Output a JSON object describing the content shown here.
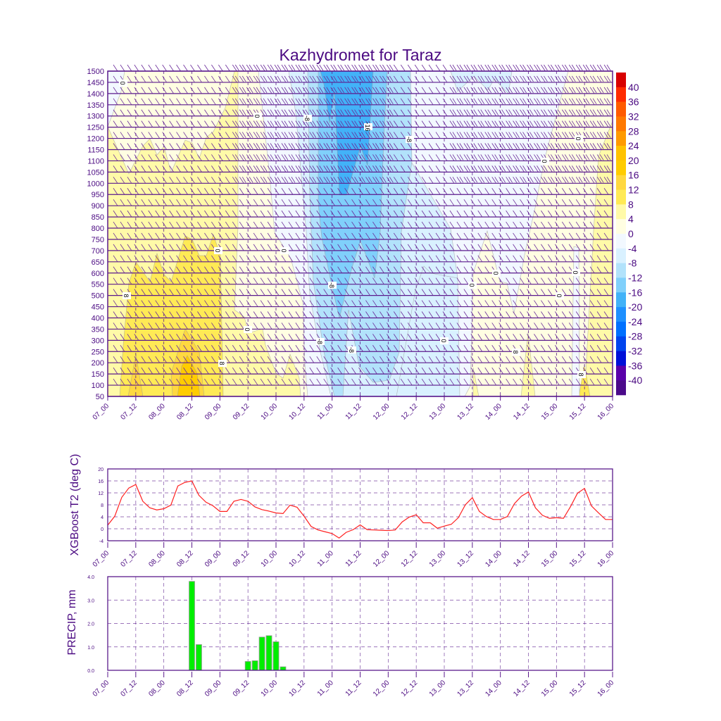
{
  "chart_data": [
    {
      "type": "heatmap",
      "title": "Kazhydromet for Taraz",
      "xlabel": "",
      "ylabel": "",
      "x_ticks": [
        "07_00",
        "07_12",
        "08_00",
        "08_12",
        "09_00",
        "09_12",
        "10_00",
        "10_12",
        "11_00",
        "11_12",
        "12_00",
        "12_12",
        "13_00",
        "13_12",
        "14_00",
        "14_12",
        "15_00",
        "15_12",
        "16_00"
      ],
      "y_ticks": [
        50,
        100,
        150,
        200,
        250,
        300,
        350,
        400,
        450,
        500,
        550,
        600,
        650,
        700,
        750,
        800,
        850,
        900,
        950,
        1000,
        1050,
        1100,
        1150,
        1200,
        1250,
        1300,
        1350,
        1400,
        1450,
        1500
      ],
      "ylim": [
        50,
        1500
      ],
      "colorbar": {
        "labels": [
          40,
          36,
          32,
          28,
          24,
          20,
          16,
          12,
          8,
          4,
          0,
          -4,
          -8,
          -12,
          -16,
          -20,
          -24,
          -28,
          -32,
          -36,
          -40
        ],
        "colors": [
          "#d80000",
          "#ff2a00",
          "#ff5a00",
          "#ff7800",
          "#ff9a00",
          "#ffc200",
          "#ffcc00",
          "#ffd840",
          "#ffea55",
          "#fffaa8",
          "#fffee2",
          "#f2f8ff",
          "#d9f1ff",
          "#b2e2fb",
          "#80d0fb",
          "#42b2f8",
          "#1e90ff",
          "#0070ff",
          "#0044ee",
          "#0010d8",
          "#5a00aa",
          "#4b0a8a"
        ]
      },
      "contour_labels": [
        "0",
        "-8",
        "-16",
        "-8",
        "0",
        "8",
        "-8",
        "0",
        "8",
        "0",
        "0",
        "-8",
        "-8",
        "0",
        "0",
        "0",
        "0",
        "8",
        "0",
        "0",
        "0",
        "8"
      ],
      "overlay": "wind barbs"
    },
    {
      "type": "line",
      "ylabel": "XGBoost T2 (deg C)",
      "ylim": [
        -4,
        20
      ],
      "y_ticks": [
        20,
        16,
        12,
        8,
        4,
        0,
        -4
      ],
      "x_ticks": [
        "07_00",
        "07_12",
        "08_00",
        "08_12",
        "09_00",
        "09_12",
        "10_00",
        "10_12",
        "11_00",
        "11_12",
        "12_00",
        "12_12",
        "13_00",
        "13_12",
        "14_00",
        "14_12",
        "15_00",
        "15_12",
        "16_00"
      ],
      "step_hours": 3,
      "series": [
        {
          "name": "T2",
          "color": "#ff2020",
          "values": [
            1.2,
            4.2,
            10.5,
            13.6,
            14.8,
            9.2,
            7.0,
            6.3,
            6.7,
            7.9,
            14.3,
            15.5,
            16.0,
            11.2,
            8.9,
            7.7,
            5.8,
            5.8,
            9.2,
            9.8,
            9.2,
            7.3,
            6.4,
            5.9,
            5.3,
            5.1,
            7.9,
            7.2,
            4.2,
            0.8,
            -0.4,
            -1.0,
            -1.6,
            -3.1,
            -1.2,
            -0.3,
            1.3,
            -0.3,
            -0.4,
            -0.5,
            -0.6,
            -0.4,
            2.3,
            3.9,
            4.7,
            2.0,
            2.0,
            0.2,
            0.9,
            1.5,
            3.7,
            8.0,
            10.4,
            5.8,
            4.1,
            3.1,
            3.1,
            4.1,
            8.4,
            10.9,
            12.3,
            7.0,
            4.5,
            3.5,
            3.7,
            3.5,
            7.4,
            11.9,
            13.5,
            7.6,
            5.3,
            3.1,
            3.1
          ]
        }
      ]
    },
    {
      "type": "bar",
      "ylabel": "PRECIP, mm",
      "ylim": [
        0,
        4
      ],
      "y_ticks": [
        "4.0",
        "3.0",
        "2.0",
        "1.0",
        "0.0"
      ],
      "x_ticks": [
        "07_00",
        "07_12",
        "08_00",
        "08_12",
        "09_00",
        "09_12",
        "10_00",
        "10_12",
        "11_00",
        "11_12",
        "12_00",
        "12_12",
        "13_00",
        "13_12",
        "14_00",
        "14_12",
        "15_00",
        "15_12",
        "16_00"
      ],
      "bar_color": "#00ee00",
      "bars": [
        {
          "time": "08_12",
          "value": 3.8
        },
        {
          "time": "08_15",
          "value": 1.1
        },
        {
          "time": "09_12",
          "value": 0.38
        },
        {
          "time": "09_15",
          "value": 0.41
        },
        {
          "time": "09_18",
          "value": 1.42
        },
        {
          "time": "09_21",
          "value": 1.48
        },
        {
          "time": "10_00",
          "value": 1.22
        },
        {
          "time": "10_03",
          "value": 0.15
        }
      ]
    }
  ]
}
